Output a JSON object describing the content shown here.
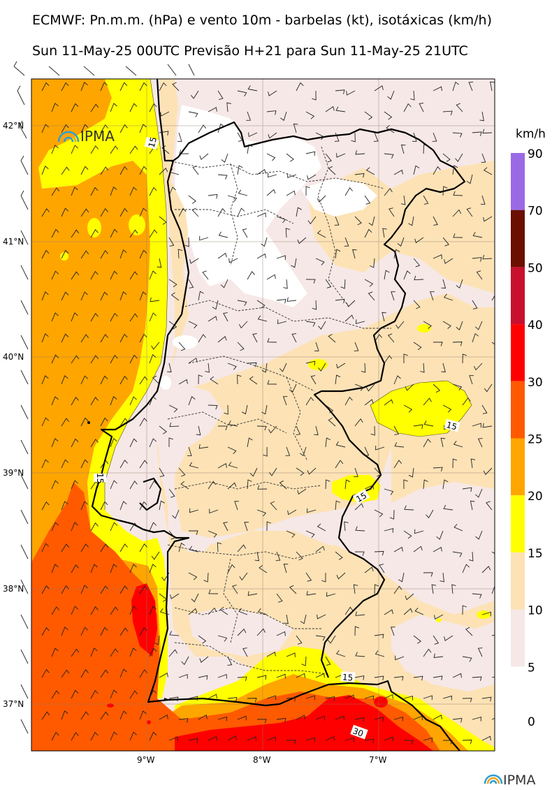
{
  "titles": {
    "line1": "ECMWF: Pn.m.m. (hPa) e vento 10m - barbelas (kt), isotáxicas (km/h)",
    "line2": "Sun 11-May-25 00UTC Previsão H+21 para Sun 11-May-25 21UTC"
  },
  "logo": {
    "text": "IPMA",
    "icon": "ipma-arc-logo"
  },
  "map": {
    "lat_labels": [
      "42°N",
      "41°N",
      "40°N",
      "39°N",
      "38°N",
      "37°N"
    ],
    "lon_labels": [
      "9°W",
      "8°W",
      "7°W"
    ],
    "contour_labels": [
      "15",
      "15",
      "15",
      "15",
      "15",
      "30"
    ]
  },
  "colorbar": {
    "unit": "km/h",
    "levels": [
      "90",
      "70",
      "50",
      "40",
      "30",
      "25",
      "20",
      "15",
      "10",
      "5",
      "0"
    ],
    "colors": [
      "#9a6ae6",
      "#6b0f00",
      "#c8102e",
      "#ff0000",
      "#ff5a00",
      "#ffa500",
      "#ffff00",
      "#fde2b5",
      "#f6e8e6"
    ]
  },
  "colors": {
    "orange": "#ffa500",
    "dark_orange": "#ff5a00",
    "red": "#ff0000",
    "yellow": "#ffff00",
    "peach": "#fde2b5",
    "pale": "#f6e8e6"
  }
}
